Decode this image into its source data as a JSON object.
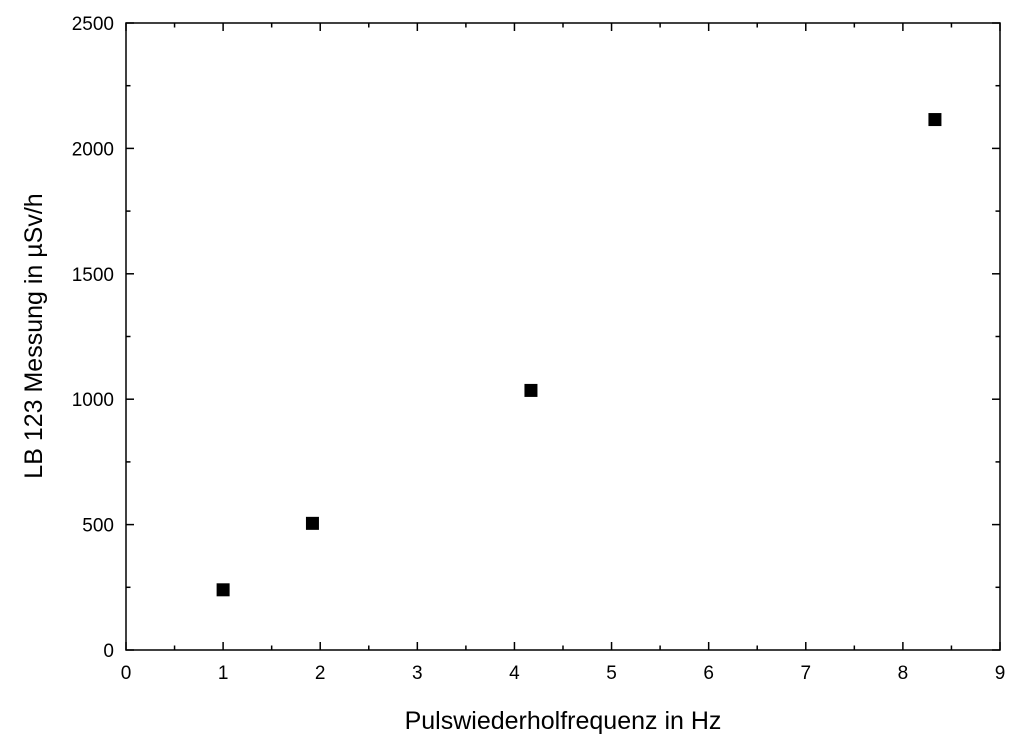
{
  "chart_data": {
    "type": "scatter",
    "title": "",
    "xlabel": "Pulswiederholfrequenz in Hz",
    "ylabel": "LB 123 Messung in µSv/h",
    "xlim": [
      0,
      9
    ],
    "ylim": [
      0,
      2500
    ],
    "x_ticks": [
      "0",
      "1",
      "2",
      "3",
      "4",
      "5",
      "6",
      "7",
      "8",
      "9"
    ],
    "y_ticks": [
      "0",
      "500",
      "1000",
      "1500",
      "2000",
      "2500"
    ],
    "x_tick_values": [
      0,
      1,
      2,
      3,
      4,
      5,
      6,
      7,
      8,
      9
    ],
    "y_tick_values": [
      0,
      500,
      1000,
      1500,
      2000,
      2500
    ],
    "grid": false,
    "series": [
      {
        "marker": "square",
        "color": "#000000",
        "x": [
          1.0,
          1.92,
          4.17,
          8.33
        ],
        "y": [
          240,
          505,
          1035,
          2115
        ]
      }
    ]
  }
}
